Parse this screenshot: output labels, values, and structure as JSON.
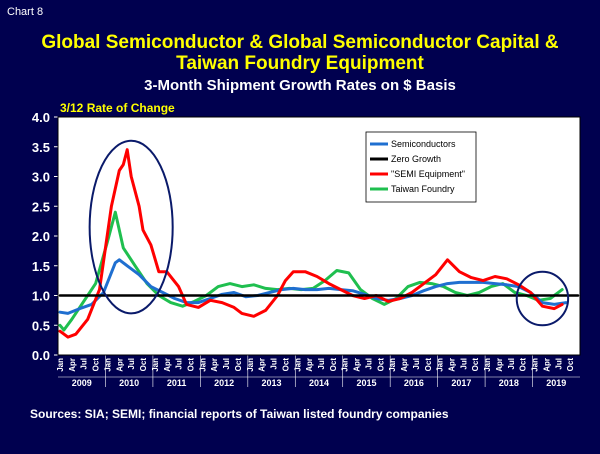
{
  "chart_label": "Chart  8",
  "title_line1": "Global Semiconductor & Global Semiconductor Capital &",
  "title_line2": "Taiwan Foundry Equipment",
  "subtitle": "3-Month Shipment Growth Rates on $ Basis",
  "ylabel": "3/12 Rate of Change",
  "source": "Sources: SIA; SEMI; financial reports of Taiwan listed foundry companies",
  "colors": {
    "semiconductors": "#1f6fd0",
    "zero_growth": "#000000",
    "semi_equipment": "#ff0000",
    "taiwan_foundry": "#1fbf4f",
    "highlight_circle": "#0a1a6a"
  },
  "chart_data": {
    "type": "line",
    "ylim": [
      0.0,
      4.0
    ],
    "yticks": [
      "0.0",
      "0.5",
      "1.0",
      "1.5",
      "2.0",
      "2.5",
      "3.0",
      "3.5",
      "4.0"
    ],
    "month_ticks": [
      "Jan",
      "Apr",
      "Jul",
      "Oct"
    ],
    "years": [
      "2009",
      "2010",
      "2011",
      "2012",
      "2013",
      "2014",
      "2015",
      "2016",
      "2017",
      "2018",
      "2019"
    ],
    "x_start": "2009-01",
    "x_end": "2019-12",
    "grid": false,
    "legend_position": "top-right",
    "series": [
      {
        "name": "Semiconductors",
        "key": "semiconductors",
        "points": [
          [
            "2009-01",
            0.72
          ],
          [
            "2009-03",
            0.7
          ],
          [
            "2009-06",
            0.78
          ],
          [
            "2009-09",
            0.85
          ],
          [
            "2009-12",
            1.05
          ],
          [
            "2010-03",
            1.55
          ],
          [
            "2010-04",
            1.6
          ],
          [
            "2010-06",
            1.5
          ],
          [
            "2010-09",
            1.35
          ],
          [
            "2010-12",
            1.15
          ],
          [
            "2011-03",
            1.05
          ],
          [
            "2011-06",
            0.95
          ],
          [
            "2011-09",
            0.88
          ],
          [
            "2011-12",
            0.88
          ],
          [
            "2012-03",
            0.95
          ],
          [
            "2012-06",
            1.02
          ],
          [
            "2012-09",
            1.05
          ],
          [
            "2012-12",
            0.98
          ],
          [
            "2013-03",
            1.0
          ],
          [
            "2013-06",
            1.05
          ],
          [
            "2013-09",
            1.1
          ],
          [
            "2013-12",
            1.12
          ],
          [
            "2014-03",
            1.1
          ],
          [
            "2014-06",
            1.1
          ],
          [
            "2014-09",
            1.12
          ],
          [
            "2014-12",
            1.1
          ],
          [
            "2015-03",
            1.08
          ],
          [
            "2015-06",
            1.02
          ],
          [
            "2015-09",
            0.95
          ],
          [
            "2015-12",
            0.92
          ],
          [
            "2016-03",
            0.95
          ],
          [
            "2016-06",
            1.0
          ],
          [
            "2016-09",
            1.08
          ],
          [
            "2016-12",
            1.15
          ],
          [
            "2017-03",
            1.2
          ],
          [
            "2017-06",
            1.22
          ],
          [
            "2017-09",
            1.22
          ],
          [
            "2017-12",
            1.22
          ],
          [
            "2018-03",
            1.2
          ],
          [
            "2018-06",
            1.18
          ],
          [
            "2018-09",
            1.15
          ],
          [
            "2018-12",
            1.05
          ],
          [
            "2019-03",
            0.88
          ],
          [
            "2019-06",
            0.85
          ],
          [
            "2019-09",
            0.88
          ]
        ]
      },
      {
        "name": "Zero Growth",
        "key": "zero_growth",
        "points": [
          [
            "2009-01",
            1.0
          ],
          [
            "2019-12",
            1.0
          ]
        ]
      },
      {
        "name": "\"SEMI Equipment\"",
        "key": "semi_equipment",
        "points": [
          [
            "2009-01",
            0.4
          ],
          [
            "2009-03",
            0.3
          ],
          [
            "2009-05",
            0.35
          ],
          [
            "2009-08",
            0.6
          ],
          [
            "2009-11",
            1.1
          ],
          [
            "2010-02",
            2.5
          ],
          [
            "2010-04",
            3.1
          ],
          [
            "2010-05",
            3.2
          ],
          [
            "2010-06",
            3.45
          ],
          [
            "2010-07",
            3.0
          ],
          [
            "2010-09",
            2.5
          ],
          [
            "2010-10",
            2.1
          ],
          [
            "2010-12",
            1.85
          ],
          [
            "2011-02",
            1.4
          ],
          [
            "2011-04",
            1.4
          ],
          [
            "2011-07",
            1.15
          ],
          [
            "2011-09",
            0.85
          ],
          [
            "2011-12",
            0.8
          ],
          [
            "2012-03",
            0.92
          ],
          [
            "2012-06",
            0.88
          ],
          [
            "2012-09",
            0.8
          ],
          [
            "2012-11",
            0.7
          ],
          [
            "2013-02",
            0.65
          ],
          [
            "2013-05",
            0.75
          ],
          [
            "2013-08",
            1.0
          ],
          [
            "2013-10",
            1.25
          ],
          [
            "2013-12",
            1.4
          ],
          [
            "2014-03",
            1.4
          ],
          [
            "2014-06",
            1.32
          ],
          [
            "2014-09",
            1.2
          ],
          [
            "2014-12",
            1.1
          ],
          [
            "2015-03",
            1.0
          ],
          [
            "2015-06",
            0.95
          ],
          [
            "2015-09",
            1.0
          ],
          [
            "2015-12",
            0.9
          ],
          [
            "2016-03",
            0.95
          ],
          [
            "2016-06",
            1.05
          ],
          [
            "2016-09",
            1.2
          ],
          [
            "2016-12",
            1.35
          ],
          [
            "2017-03",
            1.6
          ],
          [
            "2017-06",
            1.4
          ],
          [
            "2017-09",
            1.3
          ],
          [
            "2017-12",
            1.25
          ],
          [
            "2018-03",
            1.32
          ],
          [
            "2018-06",
            1.28
          ],
          [
            "2018-09",
            1.18
          ],
          [
            "2018-12",
            1.05
          ],
          [
            "2019-03",
            0.82
          ],
          [
            "2019-06",
            0.78
          ],
          [
            "2019-08",
            0.85
          ]
        ]
      },
      {
        "name": "Taiwan Foundry",
        "key": "taiwan_foundry",
        "points": [
          [
            "2009-01",
            0.5
          ],
          [
            "2009-02",
            0.42
          ],
          [
            "2009-04",
            0.6
          ],
          [
            "2009-07",
            0.9
          ],
          [
            "2009-10",
            1.2
          ],
          [
            "2010-01",
            1.9
          ],
          [
            "2010-03",
            2.4
          ],
          [
            "2010-05",
            1.8
          ],
          [
            "2010-08",
            1.5
          ],
          [
            "2010-11",
            1.2
          ],
          [
            "2011-02",
            1.0
          ],
          [
            "2011-05",
            0.88
          ],
          [
            "2011-08",
            0.82
          ],
          [
            "2011-11",
            0.9
          ],
          [
            "2012-02",
            1.0
          ],
          [
            "2012-05",
            1.15
          ],
          [
            "2012-08",
            1.2
          ],
          [
            "2012-11",
            1.15
          ],
          [
            "2013-02",
            1.18
          ],
          [
            "2013-05",
            1.12
          ],
          [
            "2013-08",
            1.1
          ],
          [
            "2013-11",
            1.12
          ],
          [
            "2014-02",
            1.1
          ],
          [
            "2014-05",
            1.12
          ],
          [
            "2014-08",
            1.25
          ],
          [
            "2014-11",
            1.42
          ],
          [
            "2015-02",
            1.38
          ],
          [
            "2015-05",
            1.1
          ],
          [
            "2015-08",
            0.95
          ],
          [
            "2015-11",
            0.85
          ],
          [
            "2016-02",
            0.95
          ],
          [
            "2016-05",
            1.15
          ],
          [
            "2016-08",
            1.22
          ],
          [
            "2016-11",
            1.2
          ],
          [
            "2017-02",
            1.15
          ],
          [
            "2017-05",
            1.05
          ],
          [
            "2017-08",
            1.0
          ],
          [
            "2017-11",
            1.05
          ],
          [
            "2018-02",
            1.15
          ],
          [
            "2018-05",
            1.2
          ],
          [
            "2018-08",
            1.05
          ],
          [
            "2018-11",
            1.0
          ],
          [
            "2019-02",
            0.92
          ],
          [
            "2019-05",
            0.95
          ],
          [
            "2019-08",
            1.1
          ]
        ]
      }
    ],
    "highlight_circles": [
      {
        "center": [
          "2010-07",
          2.15
        ],
        "x_radius_months": 10.5,
        "y_radius": 1.45
      },
      {
        "center": [
          "2019-03",
          0.95
        ],
        "x_radius_months": 6.5,
        "y_radius": 0.45
      }
    ]
  }
}
